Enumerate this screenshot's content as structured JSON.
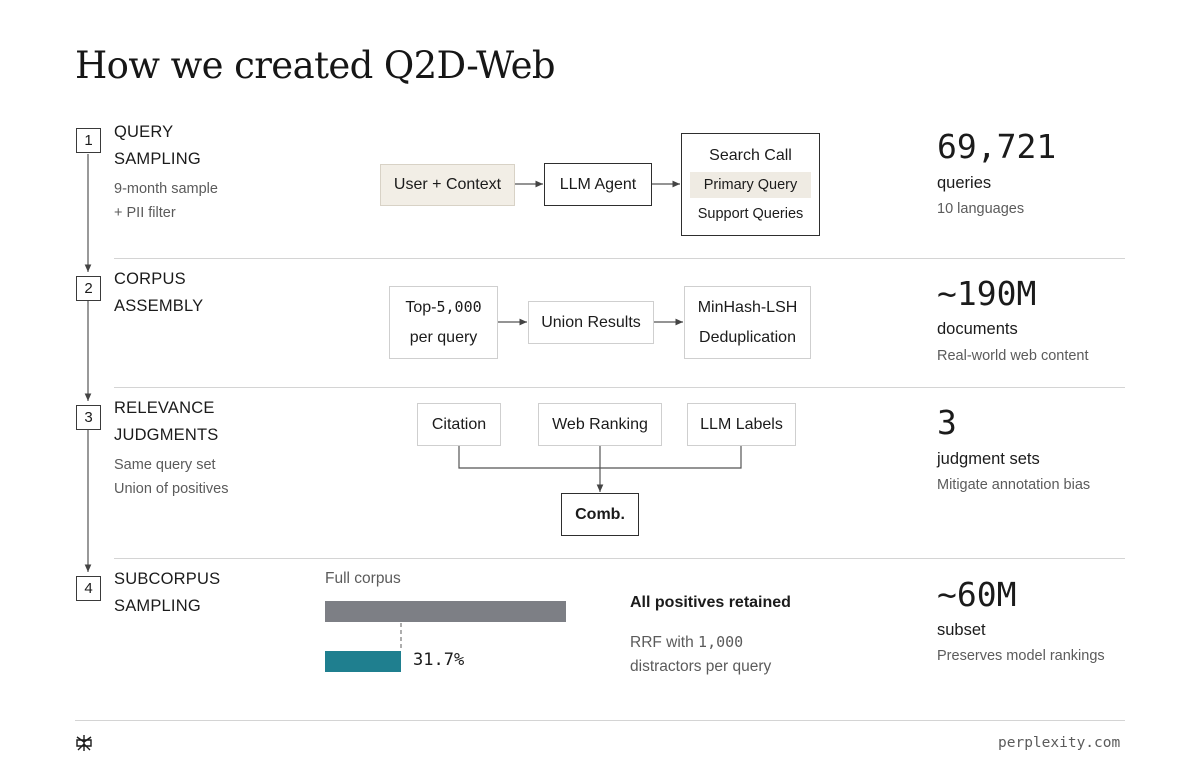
{
  "title": "How we created Q2D-Web",
  "steps": [
    {
      "num": "1",
      "title_line1": "QUERY",
      "title_line2": "SAMPLING",
      "notes": [
        "9-month sample",
        "+  PII filter"
      ],
      "stat": {
        "value": "69,721",
        "label": "queries",
        "sub": "10 languages"
      }
    },
    {
      "num": "2",
      "title_line1": "CORPUS",
      "title_line2": "ASSEMBLY",
      "notes": [],
      "stat": {
        "value": "~190M",
        "label": "documents",
        "sub": "Real-world web content"
      }
    },
    {
      "num": "3",
      "title_line1": "RELEVANCE",
      "title_line2": "JUDGMENTS",
      "notes": [
        "Same query set",
        "Union of positives"
      ],
      "stat": {
        "value": "3",
        "label": "judgment sets",
        "sub": "Mitigate annotation bias"
      }
    },
    {
      "num": "4",
      "title_line1": "SUBCORPUS",
      "title_line2": "SAMPLING",
      "notes": [],
      "stat": {
        "value": "~60M",
        "label": "subset",
        "sub": "Preserves model rankings"
      }
    }
  ],
  "flow1": {
    "input": "User + Context",
    "agent": "LLM Agent",
    "search_title": "Search Call",
    "primary": "Primary Query",
    "support": "Support Queries"
  },
  "flow2": {
    "top_line1_pre": "Top-",
    "top_line1_num": "5,000",
    "top_line2": "per query",
    "union": "Union Results",
    "dedup_line1": "MinHash-LSH",
    "dedup_line2": "Deduplication"
  },
  "flow3": {
    "citation": "Citation",
    "web_ranking": "Web Ranking",
    "llm_labels": "LLM Labels",
    "combined": "Comb."
  },
  "flow4": {
    "full_label": "Full corpus",
    "subset_fraction": 0.317,
    "subset_pct": "31.7%",
    "retained": "All positives retained",
    "rrf_pre": "RRF with ",
    "rrf_num": "1,000",
    "rrf_line2": "distractors per query",
    "colors": {
      "full": "#7d7f85",
      "subset": "#1f7f8f"
    }
  },
  "footer": {
    "logo": "perplexity-logo-icon",
    "site": "perplexity.com"
  }
}
